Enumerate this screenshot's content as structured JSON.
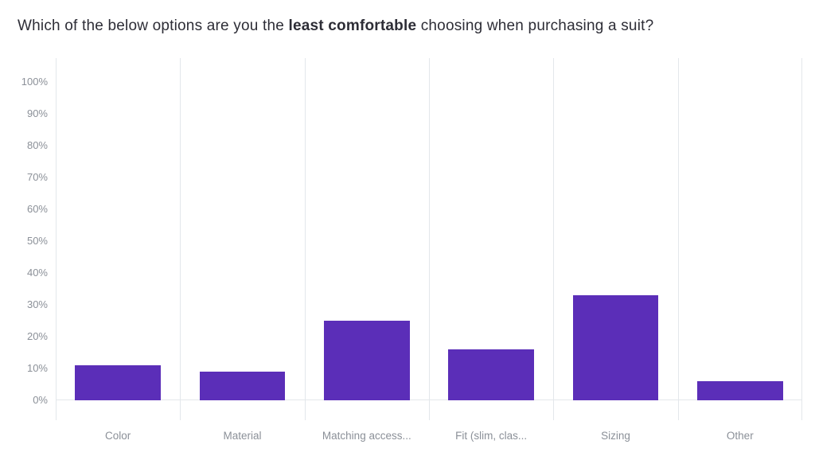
{
  "title": {
    "prefix": "Which of the below options are you the ",
    "bold": "least comfortable",
    "suffix": " choosing when purchasing a suit?"
  },
  "chart_data": {
    "type": "bar",
    "title": "Which of the below options are you the least comfortable choosing when purchasing a suit?",
    "categories": [
      "Color",
      "Material",
      "Matching access...",
      "Fit (slim, clas...",
      "Sizing",
      "Other"
    ],
    "values": [
      11,
      9,
      25,
      16,
      33,
      6
    ],
    "xlabel": "",
    "ylabel": "",
    "ylim": [
      0,
      100
    ],
    "y_ticks": [
      "100%",
      "90%",
      "80%",
      "70%",
      "60%",
      "50%",
      "40%",
      "30%",
      "20%",
      "10%",
      "0%"
    ],
    "grid": "vertical-only",
    "legend": "none",
    "bar_color": "#5B2EB8",
    "gridline_color": "#e3e7eb",
    "axis_label_color": "#8b9098"
  }
}
